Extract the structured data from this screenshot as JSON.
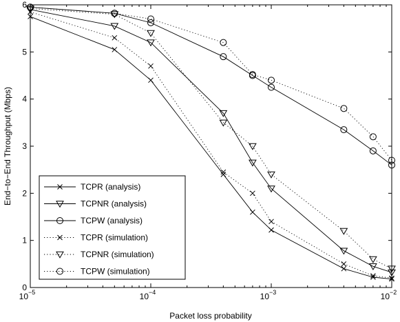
{
  "chart_data": {
    "type": "line",
    "xlabel": "Packet loss probability",
    "ylabel": "End−to−End Throughput (Mbps)",
    "xscale": "log",
    "xlim": [
      1e-05,
      0.01
    ],
    "ylim": [
      0,
      6
    ],
    "x_ticks": [
      {
        "value": 1e-05,
        "base": "10",
        "exp": "−5"
      },
      {
        "value": 0.0001,
        "base": "10",
        "exp": "−4"
      },
      {
        "value": 0.001,
        "base": "10",
        "exp": "−3"
      },
      {
        "value": 0.01,
        "base": "10",
        "exp": "−2"
      }
    ],
    "y_ticks": [
      "0",
      "1",
      "2",
      "3",
      "4",
      "5",
      "6"
    ],
    "grid": false,
    "legend_position": "bottom-left",
    "series": [
      {
        "name": "TCPR (analysis)",
        "marker": "x",
        "line": "solid",
        "x": [
          1e-05,
          5e-05,
          0.0001,
          0.0004,
          0.0007,
          0.001,
          0.004,
          0.007,
          0.01
        ],
        "y": [
          5.75,
          5.05,
          4.4,
          2.4,
          1.6,
          1.22,
          0.4,
          0.22,
          0.18
        ]
      },
      {
        "name": "TCPNR (analysis)",
        "marker": "triangle-down",
        "line": "solid",
        "x": [
          1e-05,
          5e-05,
          0.0001,
          0.0004,
          0.0007,
          0.001,
          0.004,
          0.007,
          0.01
        ],
        "y": [
          5.9,
          5.55,
          5.2,
          3.7,
          2.65,
          2.1,
          0.78,
          0.45,
          0.32
        ]
      },
      {
        "name": "TCPW (analysis)",
        "marker": "circle",
        "line": "solid",
        "x": [
          1e-05,
          5e-05,
          0.0001,
          0.0004,
          0.0007,
          0.001,
          0.004,
          0.007,
          0.01
        ],
        "y": [
          5.95,
          5.82,
          5.62,
          4.9,
          4.5,
          4.25,
          3.35,
          2.9,
          2.6
        ]
      },
      {
        "name": "TCPR (simulation)",
        "marker": "x",
        "line": "dotted",
        "x": [
          1e-05,
          5e-05,
          0.0001,
          0.0004,
          0.0007,
          0.001,
          0.004,
          0.007,
          0.01
        ],
        "y": [
          5.85,
          5.3,
          4.7,
          2.45,
          2.0,
          1.4,
          0.5,
          0.25,
          0.2
        ]
      },
      {
        "name": "TCPNR (simulation)",
        "marker": "triangle-down",
        "line": "dotted",
        "x": [
          1e-05,
          5e-05,
          0.0001,
          0.0004,
          0.0007,
          0.001,
          0.004,
          0.007,
          0.01
        ],
        "y": [
          5.92,
          5.8,
          5.4,
          3.5,
          3.0,
          2.4,
          1.2,
          0.6,
          0.4
        ]
      },
      {
        "name": "TCPW (simulation)",
        "marker": "circle",
        "line": "dotted",
        "x": [
          1e-05,
          5e-05,
          0.0001,
          0.0004,
          0.0007,
          0.001,
          0.004,
          0.007,
          0.01
        ],
        "y": [
          5.95,
          5.82,
          5.7,
          5.2,
          4.52,
          4.4,
          3.8,
          3.2,
          2.7
        ]
      }
    ]
  }
}
